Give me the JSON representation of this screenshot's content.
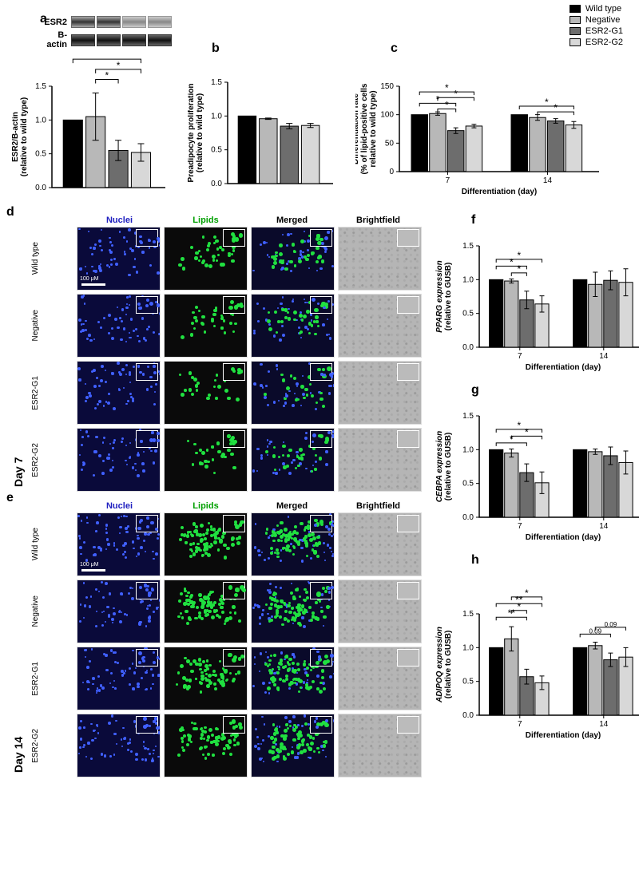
{
  "legend": {
    "items": [
      {
        "label": "Wild type",
        "color": "#000000"
      },
      {
        "label": "Negative",
        "color": "#b8b8b8"
      },
      {
        "label": "ESR2-G1",
        "color": "#6d6d6d"
      },
      {
        "label": "ESR2-G2",
        "color": "#d8d8d8"
      }
    ]
  },
  "colors": {
    "wildtype": "#000000",
    "negative": "#b8b8b8",
    "esr2g1": "#6d6d6d",
    "esr2g2": "#d8d8d8",
    "nuclei_label": "#2020c0",
    "lipid_label": "#00a000"
  },
  "panel_a": {
    "label": "a",
    "blot_labels": {
      "esr2": "ESR2",
      "bactin": "B-actin"
    },
    "y_title": "ESR2/B-actin\n(relative to wild type)",
    "ylim": [
      0,
      1.5
    ],
    "ytick_step": 0.5,
    "values": [
      1.0,
      1.05,
      0.55,
      0.52
    ],
    "errors": [
      0,
      0.35,
      0.15,
      0.13
    ],
    "sig": [
      {
        "from": 1,
        "to": 2,
        "label": "*",
        "height": 1.6
      },
      {
        "from": 1,
        "to": 3,
        "label": "*",
        "height": 1.75
      },
      {
        "from": 0,
        "to": 3,
        "label": "*",
        "height": 1.9
      }
    ]
  },
  "panel_b": {
    "label": "b",
    "y_title": "Preadipocyte proliferation\n(relative to wild type)",
    "ylim": [
      0,
      1.5
    ],
    "ytick_step": 0.5,
    "values": [
      1.0,
      0.96,
      0.85,
      0.86
    ],
    "errors": [
      0,
      0.01,
      0.04,
      0.03
    ]
  },
  "panel_c": {
    "label": "c",
    "y_title": "Differentiation rate\n(% of lipid-positive cells\nrelative to wild type)",
    "ylim": [
      0,
      150
    ],
    "ytick_step": 50,
    "x_groups": [
      "7",
      "14"
    ],
    "x_label": "Differentiation (day)",
    "day7": {
      "values": [
        100,
        102,
        72,
        80
      ],
      "errors": [
        0,
        3,
        5,
        3
      ]
    },
    "day14": {
      "values": [
        100,
        95,
        89,
        82
      ],
      "errors": [
        0,
        5,
        4,
        6
      ]
    },
    "sig_day7": [
      {
        "from": 1,
        "to": 2,
        "label": "*",
        "height": 110
      },
      {
        "from": 0,
        "to": 2,
        "label": "*",
        "height": 120
      },
      {
        "from": 1,
        "to": 3,
        "label": "*",
        "height": 130
      },
      {
        "from": 0,
        "to": 3,
        "label": "*",
        "height": 140
      }
    ],
    "sig_day14": [
      {
        "from": 0,
        "to": 3,
        "label": "*",
        "height": 115
      },
      {
        "from": 1,
        "to": 3,
        "label": "*",
        "height": 105
      }
    ]
  },
  "microscopy": {
    "headers": {
      "nuclei": "Nuclei",
      "lipids": "Lipids",
      "merged": "Merged",
      "brightfield": "Brightfield"
    },
    "row_labels": [
      "Wild type",
      "Negative",
      "ESR2-G1",
      "ESR2-G2"
    ],
    "day7_label": "Day 7",
    "day14_label": "Day 14",
    "panel_d": "d",
    "panel_e": "e",
    "scale": "100 μM"
  },
  "panel_f": {
    "label": "f",
    "y_title": "PPARG expression\n(relative to GUSB)",
    "ylim": [
      0,
      1.5
    ],
    "ytick_step": 0.5,
    "x_groups": [
      "7",
      "14"
    ],
    "x_label": "Differentiation (day)",
    "day7": {
      "values": [
        1.0,
        0.98,
        0.7,
        0.64
      ],
      "errors": [
        0,
        0.03,
        0.13,
        0.12
      ]
    },
    "day14": {
      "values": [
        1.0,
        0.93,
        0.99,
        0.96
      ],
      "errors": [
        0,
        0.18,
        0.14,
        0.2
      ]
    },
    "sig_day7": [
      {
        "from": 1,
        "to": 2,
        "label": "*",
        "height": 1.1
      },
      {
        "from": 0,
        "to": 2,
        "label": "*",
        "height": 1.2
      },
      {
        "from": 0,
        "to": 3,
        "label": "*",
        "height": 1.3
      }
    ]
  },
  "panel_g": {
    "label": "g",
    "y_title": "CEBPA expression\n(relative to GUSB)",
    "ylim": [
      0,
      1.5
    ],
    "ytick_step": 0.5,
    "x_groups": [
      "7",
      "14"
    ],
    "x_label": "Differentiation (day)",
    "day7": {
      "values": [
        1.0,
        0.95,
        0.66,
        0.51
      ],
      "errors": [
        0,
        0.06,
        0.13,
        0.16
      ]
    },
    "day14": {
      "values": [
        1.0,
        0.97,
        0.91,
        0.81
      ],
      "errors": [
        0,
        0.04,
        0.13,
        0.17
      ]
    },
    "sig_day7": [
      {
        "from": 0,
        "to": 2,
        "label": "*",
        "height": 1.1
      },
      {
        "from": 1,
        "to": 3,
        "label": "*",
        "height": 1.2
      },
      {
        "from": 0,
        "to": 3,
        "label": "*",
        "height": 1.3
      }
    ]
  },
  "panel_h": {
    "label": "h",
    "y_title": "ADIPOQ expression\n(relative to GUSB)",
    "ylim": [
      0,
      1.5
    ],
    "ytick_step": 0.5,
    "x_groups": [
      "7",
      "14"
    ],
    "x_label": "Differentiation (day)",
    "day7": {
      "values": [
        1.0,
        1.13,
        0.57,
        0.48
      ],
      "errors": [
        0,
        0.18,
        0.11,
        0.1
      ]
    },
    "day14": {
      "values": [
        1.0,
        1.03,
        0.82,
        0.86
      ],
      "errors": [
        0,
        0.05,
        0.1,
        0.14
      ]
    },
    "sig_day7": [
      {
        "from": 0,
        "to": 2,
        "label": "**",
        "height": 1.45
      },
      {
        "from": 1,
        "to": 2,
        "label": "*",
        "height": 1.55
      },
      {
        "from": 0,
        "to": 3,
        "label": "**",
        "height": 1.65
      },
      {
        "from": 1,
        "to": 3,
        "label": "*",
        "height": 1.75
      }
    ],
    "sig_day14": [
      {
        "from": 0,
        "to": 2,
        "label": "0.09",
        "height": 1.2
      },
      {
        "from": 1,
        "to": 3,
        "label": "0.09",
        "height": 1.3
      }
    ]
  }
}
